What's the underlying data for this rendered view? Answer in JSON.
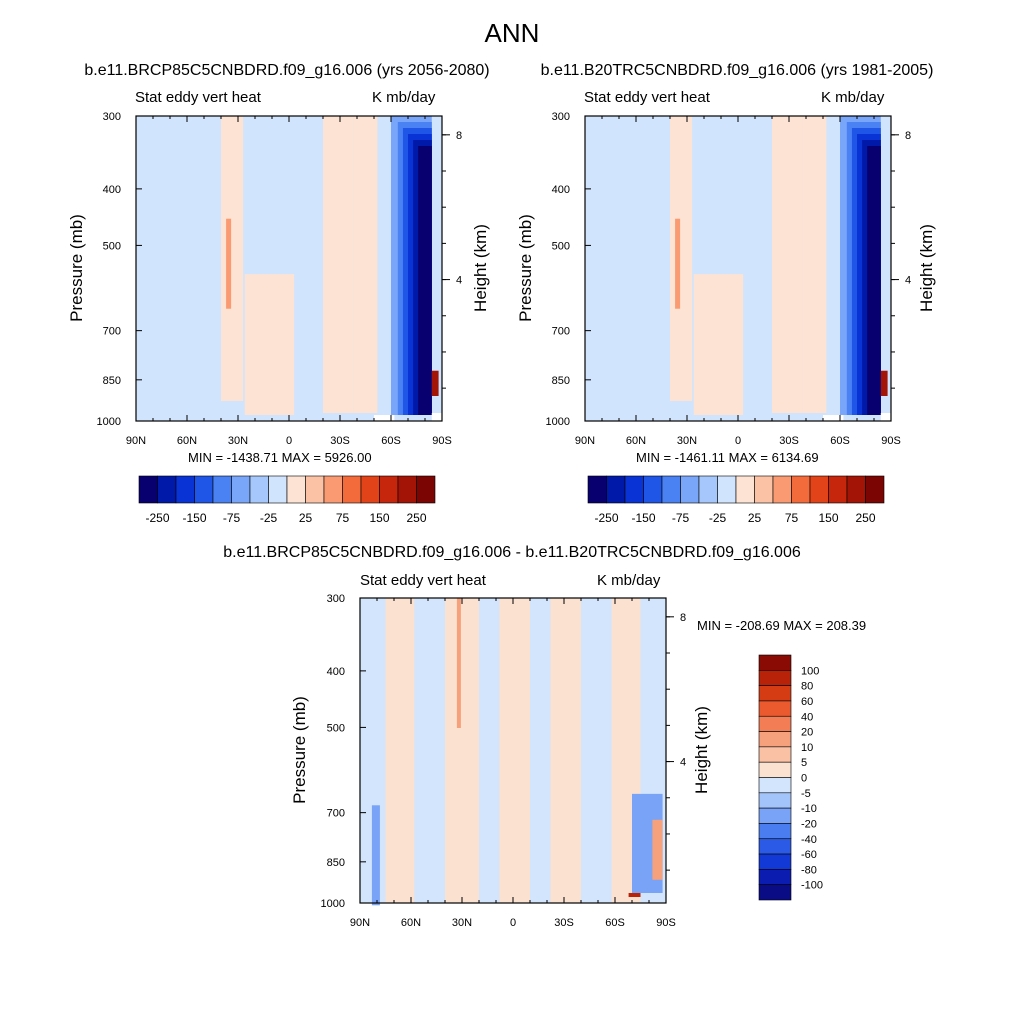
{
  "page_title": "ANN",
  "colors": {
    "top_palette": [
      "#08006e",
      "#0019a8",
      "#0a33d6",
      "#1f56e8",
      "#4a82f4",
      "#7aa6f9",
      "#a6c7fb",
      "#d1e4fd",
      "#fde3d3",
      "#fcc2a6",
      "#f99a72",
      "#f46b3b",
      "#e34318",
      "#c6260b",
      "#a31406",
      "#7a0503"
    ],
    "diff_palette": [
      "#0a0c86",
      "#0a1db0",
      "#1239d6",
      "#2a5ae6",
      "#4a7ef0",
      "#78a3f7",
      "#a3c3fb",
      "#d2e5fd",
      "#fbe1d0",
      "#fac1a5",
      "#f7a07c",
      "#f37d55",
      "#ea5a2e",
      "#d63c14",
      "#b82208",
      "#8a0a04"
    ]
  },
  "chart_data": [
    {
      "type": "heatmap",
      "title": "b.e11.BRCP85C5CNBDRD.f09_g16.006 (yrs 2056-2080)",
      "left_string": "Stat eddy vert heat",
      "right_string": "K mb/day",
      "xlabel": "",
      "ylabel": "Pressure (mb)",
      "y2label": "Height (km)",
      "x_ticks": [
        "90N",
        "60N",
        "30N",
        "0",
        "30S",
        "60S",
        "90S"
      ],
      "y_ticks": [
        "300",
        "400",
        "500",
        "700",
        "850",
        "1000"
      ],
      "y_tick_values": [
        300,
        400,
        500,
        700,
        850,
        1000
      ],
      "y2_ticks": [
        "8",
        "4"
      ],
      "y2_tick_values": [
        8,
        4
      ],
      "ylim": [
        1000,
        300
      ],
      "xlim": [
        90,
        -90
      ],
      "min_max": "MIN = -1438.71  MAX = 5926.00",
      "colorbar_labels": [
        "-250",
        "-150",
        "-75",
        "-25",
        "25",
        "75",
        "150",
        "250"
      ],
      "colorbar_levels": [
        -300,
        -250,
        -200,
        -150,
        -100,
        -75,
        -50,
        -25,
        0,
        25,
        50,
        75,
        100,
        150,
        200,
        250,
        300
      ]
    },
    {
      "type": "heatmap",
      "title": "b.e11.B20TRC5CNBDRD.f09_g16.006 (yrs 1981-2005)",
      "left_string": "Stat eddy vert heat",
      "right_string": "K mb/day",
      "xlabel": "",
      "ylabel": "Pressure (mb)",
      "y2label": "Height (km)",
      "x_ticks": [
        "90N",
        "60N",
        "30N",
        "0",
        "30S",
        "60S",
        "90S"
      ],
      "y_ticks": [
        "300",
        "400",
        "500",
        "700",
        "850",
        "1000"
      ],
      "y_tick_values": [
        300,
        400,
        500,
        700,
        850,
        1000
      ],
      "y2_ticks": [
        "8",
        "4"
      ],
      "y2_tick_values": [
        8,
        4
      ],
      "ylim": [
        1000,
        300
      ],
      "xlim": [
        90,
        -90
      ],
      "min_max": "MIN = -1461.11  MAX = 6134.69",
      "colorbar_labels": [
        "-250",
        "-150",
        "-75",
        "-25",
        "25",
        "75",
        "150",
        "250"
      ],
      "colorbar_levels": [
        -300,
        -250,
        -200,
        -150,
        -100,
        -75,
        -50,
        -25,
        0,
        25,
        50,
        75,
        100,
        150,
        200,
        250,
        300
      ]
    },
    {
      "type": "heatmap",
      "title": "b.e11.BRCP85C5CNBDRD.f09_g16.006 - b.e11.B20TRC5CNBDRD.f09_g16.006",
      "left_string": "Stat eddy vert heat",
      "right_string": "K mb/day",
      "xlabel": "",
      "ylabel": "Pressure (mb)",
      "y2label": "Height (km)",
      "x_ticks": [
        "90N",
        "60N",
        "30N",
        "0",
        "30S",
        "60S",
        "90S"
      ],
      "y_ticks": [
        "300",
        "400",
        "500",
        "700",
        "850",
        "1000"
      ],
      "y_tick_values": [
        300,
        400,
        500,
        700,
        850,
        1000
      ],
      "y2_ticks": [
        "8",
        "4"
      ],
      "y2_tick_values": [
        8,
        4
      ],
      "ylim": [
        1000,
        300
      ],
      "xlim": [
        90,
        -90
      ],
      "min_max": "MIN = -208.69  MAX = 208.39",
      "colorbar_labels": [
        "100",
        "80",
        "60",
        "40",
        "20",
        "10",
        "5",
        "0",
        "-5",
        "-10",
        "-20",
        "-40",
        "-60",
        "-80",
        "-100"
      ],
      "colorbar_levels": [
        120,
        100,
        80,
        60,
        40,
        20,
        10,
        5,
        0,
        -5,
        -10,
        -20,
        -40,
        -60,
        -80,
        -100,
        -120
      ]
    }
  ]
}
